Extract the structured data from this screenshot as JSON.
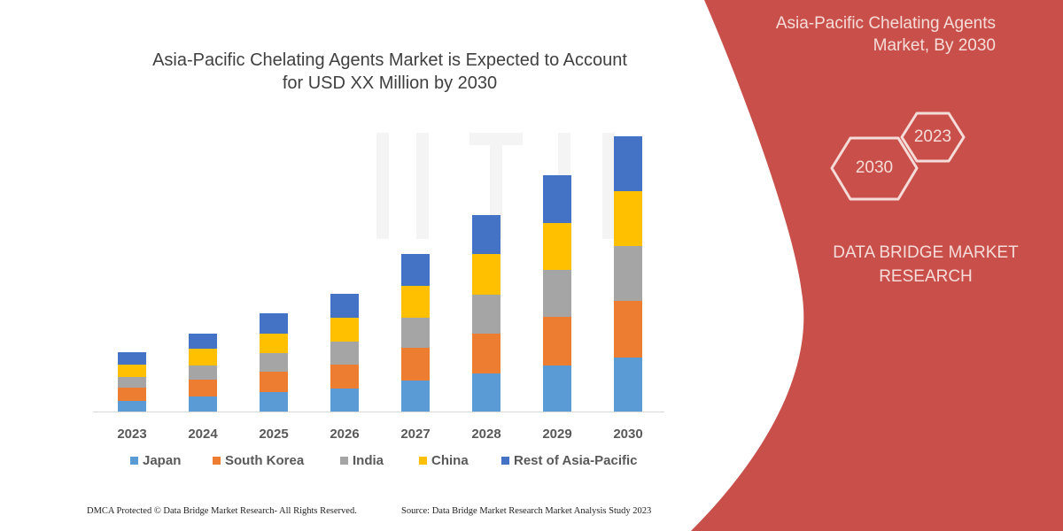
{
  "header": {
    "title_line1": "Asia-Pacific Chelating Agents Market is Expected to Account",
    "title_line2": "for USD XX Million by 2030"
  },
  "side_panel": {
    "title_line1": "Asia-Pacific Chelating Agents",
    "title_line2": "Market, By 2030",
    "hex_front": "2030",
    "hex_back": "2023",
    "brand_line1": "DATA BRIDGE MARKET",
    "brand_line2": "RESEARCH",
    "color": "#c9504a"
  },
  "footer": {
    "left": "DMCA Protected © Data Bridge Market Research-  All Rights Reserved.",
    "right": "Source: Data Bridge Market Research  Market Analysis Study 2023"
  },
  "chart_data": {
    "type": "bar",
    "stacked": true,
    "title": "Asia-Pacific Chelating Agents Market is Expected to Account for USD XX Million by 2030",
    "xlabel": "",
    "ylabel": "",
    "y_axis_shown": false,
    "grid": false,
    "legend_position": "bottom",
    "categories": [
      "2023",
      "2024",
      "2025",
      "2026",
      "2027",
      "2028",
      "2029",
      "2030"
    ],
    "series": [
      {
        "name": "Japan",
        "color": "#5b9bd5",
        "values": [
          12,
          17,
          22,
          26,
          35,
          43,
          52,
          61
        ]
      },
      {
        "name": "South Korea",
        "color": "#ed7d31",
        "values": [
          15,
          19,
          23,
          27,
          37,
          45,
          55,
          64
        ]
      },
      {
        "name": "India",
        "color": "#a5a5a5",
        "values": [
          12,
          16,
          21,
          26,
          34,
          44,
          53,
          62
        ]
      },
      {
        "name": "China",
        "color": "#ffc000",
        "values": [
          14,
          19,
          22,
          27,
          36,
          46,
          53,
          62
        ]
      },
      {
        "name": "Rest of Asia-Pacific",
        "color": "#4472c4",
        "values": [
          14,
          17,
          23,
          27,
          36,
          44,
          54,
          62
        ]
      }
    ],
    "ylim": [
      0,
      311
    ]
  }
}
